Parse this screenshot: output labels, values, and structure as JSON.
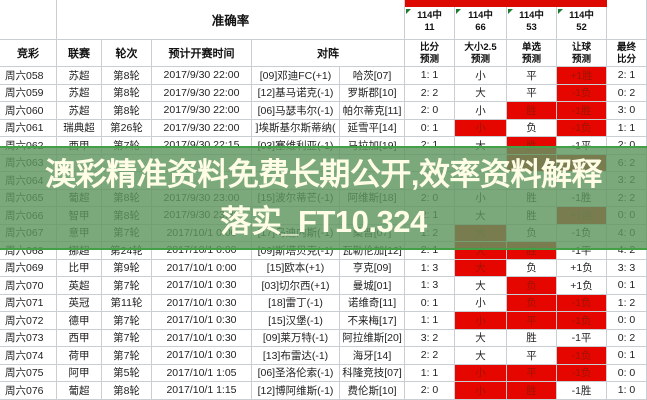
{
  "colors": {
    "highlight_red": "#e60600",
    "top_bar_red": "#dd0800",
    "band_green": "rgba(95,150,95,0.82)",
    "band_border_green": "#43a047",
    "watermark_text": "#fffde6"
  },
  "watermark": {
    "line1": "澳彩精准资料免费长期公开,效率资料解释",
    "line2": "落实_FT10.324"
  },
  "table": {
    "accuracy_label": "准确率",
    "stat_cells": [
      {
        "hits": "114中",
        "value": "11"
      },
      {
        "hits": "114中",
        "value": "66"
      },
      {
        "hits": "114中",
        "value": "53"
      },
      {
        "hits": "114中",
        "value": "52"
      }
    ],
    "headers": {
      "jingcai": "竞彩",
      "league": "联赛",
      "round": "轮次",
      "time": "预计开赛时间",
      "matchup": "对阵",
      "score_pred": [
        "比分",
        "预测"
      ],
      "ou": [
        "大小2.5",
        "预测"
      ],
      "single": [
        "单选",
        "预测"
      ],
      "handicap": [
        "让球",
        "预测"
      ],
      "final": [
        "最终",
        "比分"
      ]
    },
    "rows": [
      {
        "id": "周六058",
        "league": "苏超",
        "round": "第8轮",
        "time": "2017/9/30 22:00",
        "home": "[09]邓迪FC(+1)",
        "away": "哈茨[07]",
        "score_pred": "1: 1",
        "ou": "小",
        "single": "平",
        "handicap": "+1胜",
        "final": "2: 1",
        "red": [
          "handicap"
        ]
      },
      {
        "id": "周六059",
        "league": "苏超",
        "round": "第8轮",
        "time": "2017/9/30 22:00",
        "home": "[12]基马诺克(-1)",
        "away": "罗斯郡[10]",
        "score_pred": "2: 2",
        "ou": "大",
        "single": "平",
        "handicap": "-1负",
        "final": "0: 2",
        "red": [
          "handicap"
        ]
      },
      {
        "id": "周六060",
        "league": "苏超",
        "round": "第8轮",
        "time": "2017/9/30 22:00",
        "home": "[06]马瑟韦尔(-1)",
        "away": "帕尔蒂克[11]",
        "score_pred": "2: 0",
        "ou": "小",
        "single": "胜",
        "handicap": "-1胜",
        "final": "3: 0",
        "red": [
          "single",
          "handicap"
        ]
      },
      {
        "id": "周六061",
        "league": "瑞典超",
        "round": "第26轮",
        "time": "2017/9/30 22:00",
        "home": "]埃斯基尔斯蒂纳(",
        "away": "延雪平[14]",
        "score_pred": "0: 1",
        "ou": "小",
        "single": "负",
        "handicap": "-1负",
        "final": "1: 1",
        "red": [
          "ou",
          "handicap"
        ]
      },
      {
        "id": "周六062",
        "league": "西甲",
        "round": "第7轮",
        "time": "2017/9/30 22:15",
        "home": "[03]塞维利亚(-1)",
        "away": "马拉加[19]",
        "score_pred": "2: 1",
        "ou": "大",
        "single": "胜",
        "handicap": "-1平",
        "final": "2: 0",
        "red": [
          "single"
        ]
      },
      {
        "id": "周六063",
        "league": "",
        "round": "",
        "time": "",
        "home": "",
        "away": "",
        "score_pred": "",
        "ou": "",
        "single": "",
        "handicap": "",
        "final": "6: 2",
        "red": [
          "single",
          "handicap"
        ]
      },
      {
        "id": "周六064",
        "league": "",
        "round": "",
        "time": "",
        "home": "",
        "away": "",
        "score_pred": "",
        "ou": "",
        "single": "",
        "handicap": "",
        "final": "3: 2",
        "red": []
      },
      {
        "id": "周六065",
        "league": "葡超",
        "round": "第8轮",
        "time": "2017/9/30 23:00",
        "home": "[15]波尔蒂芒(-1)",
        "away": "阿维斯[18]",
        "score_pred": "2: 0",
        "ou": "小",
        "single": "胜",
        "handicap": "-1胜",
        "final": "2: 2",
        "red": []
      },
      {
        "id": "周六066",
        "league": "智甲",
        "round": "第8轮",
        "time": "2017/9/30 23:30",
        "home": "",
        "away": "",
        "score_pred": "2: 1",
        "ou": "大",
        "single": "胜",
        "handicap": "+1胜",
        "final": "0: 0",
        "red": [
          "handicap"
        ]
      },
      {
        "id": "周六067",
        "league": "意甲",
        "round": "第7轮",
        "time": "2017/10/1 0:00",
        "home": "[17]乌迪内斯(-1)",
        "away": "桑普[07]",
        "score_pred": "1: 2",
        "ou": "大",
        "single": "负",
        "handicap": "-1负",
        "final": "4: 0",
        "red": [
          "ou"
        ]
      },
      {
        "id": "周六068",
        "league": "挪超",
        "round": "第24轮",
        "time": "2017/10/1 0:00",
        "home": "[09]斯塔贝克(-1)",
        "away": "瓦勒伦加[12]",
        "score_pred": "2: 1",
        "ou": "大",
        "single": "胜",
        "handicap": "-1平",
        "final": "4: 2",
        "red": [
          "ou",
          "single"
        ]
      },
      {
        "id": "周六069",
        "league": "比甲",
        "round": "第9轮",
        "time": "2017/10/1 0:00",
        "home": "[15]欧本(+1)",
        "away": "亨克[09]",
        "score_pred": "1: 3",
        "ou": "大",
        "single": "负",
        "handicap": "+1负",
        "final": "3: 3",
        "red": [
          "ou"
        ]
      },
      {
        "id": "周六070",
        "league": "英超",
        "round": "第7轮",
        "time": "2017/10/1 0:30",
        "home": "[03]切尔西(+1)",
        "away": "曼城[01]",
        "score_pred": "1: 3",
        "ou": "大",
        "single": "负",
        "handicap": "+1负",
        "final": "0: 1",
        "red": [
          "single"
        ]
      },
      {
        "id": "周六071",
        "league": "英冠",
        "round": "第11轮",
        "time": "2017/10/1 0:30",
        "home": "[18]雷丁(-1)",
        "away": "诺维奇[11]",
        "score_pred": "0: 1",
        "ou": "小",
        "single": "负",
        "handicap": "-1负",
        "final": "1: 2",
        "red": [
          "single",
          "handicap"
        ]
      },
      {
        "id": "周六072",
        "league": "德甲",
        "round": "第7轮",
        "time": "2017/10/1 0:30",
        "home": "[15]汉堡(-1)",
        "away": "不来梅[17]",
        "score_pred": "1: 1",
        "ou": "小",
        "single": "平",
        "handicap": "-1负",
        "final": "0: 0",
        "red": [
          "ou",
          "single",
          "handicap"
        ]
      },
      {
        "id": "周六073",
        "league": "西甲",
        "round": "第7轮",
        "time": "2017/10/1 0:30",
        "home": "[09]莱万特(-1)",
        "away": "阿拉维斯[20]",
        "score_pred": "3: 2",
        "ou": "大",
        "single": "胜",
        "handicap": "-1平",
        "final": "0: 2",
        "red": []
      },
      {
        "id": "周六074",
        "league": "荷甲",
        "round": "第7轮",
        "time": "2017/10/1 0:30",
        "home": "[13]布雷达(-1)",
        "away": "海牙[14]",
        "score_pred": "2: 2",
        "ou": "大",
        "single": "平",
        "handicap": "-1负",
        "final": "0: 1",
        "red": [
          "handicap"
        ]
      },
      {
        "id": "周六075",
        "league": "阿甲",
        "round": "第5轮",
        "time": "2017/10/1 1:05",
        "home": "[06]圣洛伦索(-1)",
        "away": "科隆竞技[07]",
        "score_pred": "1: 1",
        "ou": "小",
        "single": "平",
        "handicap": "-1负",
        "final": "0: 0",
        "red": [
          "ou",
          "single",
          "handicap"
        ]
      },
      {
        "id": "周六076",
        "league": "葡超",
        "round": "第8轮",
        "time": "2017/10/1 1:15",
        "home": "[12]博阿维斯(-1)",
        "away": "费伦斯[10]",
        "score_pred": "2: 0",
        "ou": "小",
        "single": "胜",
        "handicap": "-1胜",
        "final": "1: 0",
        "red": [
          "ou",
          "single"
        ]
      }
    ]
  }
}
